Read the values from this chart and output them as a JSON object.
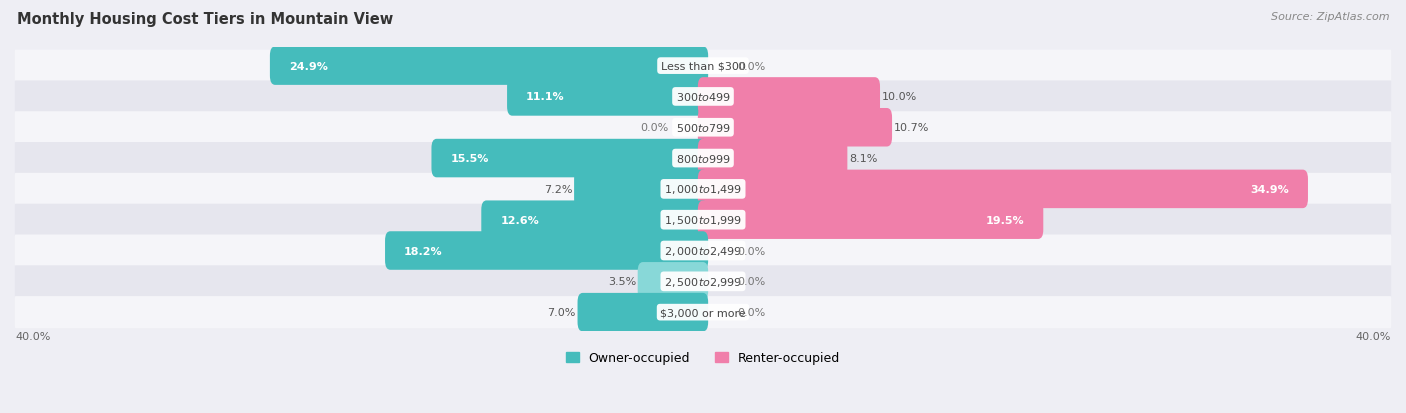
{
  "title": "Monthly Housing Cost Tiers in Mountain View",
  "source": "Source: ZipAtlas.com",
  "categories": [
    "Less than $300",
    "$300 to $499",
    "$500 to $799",
    "$800 to $999",
    "$1,000 to $1,499",
    "$1,500 to $1,999",
    "$2,000 to $2,499",
    "$2,500 to $2,999",
    "$3,000 or more"
  ],
  "owner_values": [
    24.9,
    11.1,
    0.0,
    15.5,
    7.2,
    12.6,
    18.2,
    3.5,
    7.0
  ],
  "renter_values": [
    0.0,
    10.0,
    10.7,
    8.1,
    34.9,
    19.5,
    0.0,
    0.0,
    0.0
  ],
  "owner_color": "#45BCBC",
  "owner_color_light": "#88D8D8",
  "renter_color": "#F07FAA",
  "renter_color_light": "#F5B8CE",
  "owner_label": "Owner-occupied",
  "renter_label": "Renter-occupied",
  "axis_max": 40.0,
  "background_color": "#eeeef4",
  "row_colors": [
    "#f5f5f9",
    "#e6e6ee"
  ],
  "title_fontsize": 10.5,
  "source_fontsize": 8,
  "cat_fontsize": 8,
  "value_fontsize": 8,
  "tick_fontsize": 8,
  "legend_fontsize": 9,
  "bar_height": 0.65
}
